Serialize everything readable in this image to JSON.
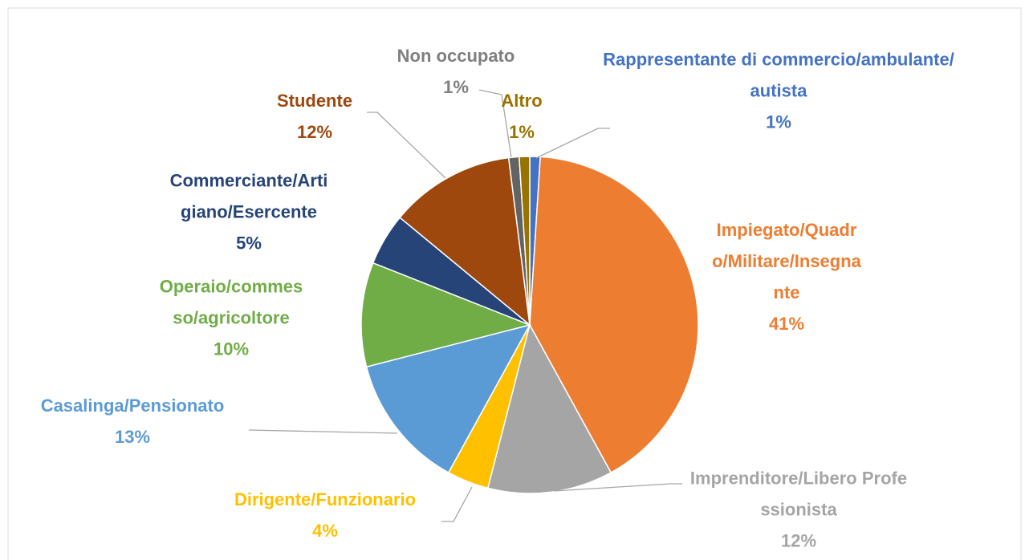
{
  "chart_data": {
    "type": "pie",
    "categories": [
      "Rappresentante di commercio/ambulante/autista",
      "Impiegato/Quadro/Militare/Insegnante",
      "Imprenditore/Libero Professionista",
      "Dirigente/Funzionario",
      "Casalinga/Pensionato",
      "Operaio/commesso/agricoltore",
      "Commerciante/Artigiano/Esercente",
      "Studente",
      "Non occupato",
      "Altro"
    ],
    "values": [
      1,
      41,
      12,
      4,
      13,
      10,
      5,
      12,
      1,
      1
    ],
    "value_labels": [
      "1%",
      "41%",
      "12%",
      "4%",
      "13%",
      "10%",
      "5%",
      "12%",
      "1%",
      "1%"
    ],
    "colors": [
      "#4472c4",
      "#ed7d31",
      "#a5a5a5",
      "#ffc000",
      "#5b9bd5",
      "#70ad47",
      "#264478",
      "#9e480e",
      "#636363",
      "#997300"
    ]
  }
}
